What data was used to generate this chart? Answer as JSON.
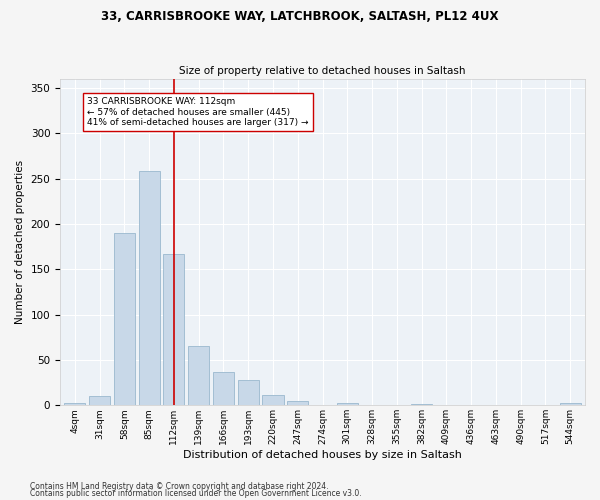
{
  "title1": "33, CARRISBROOKE WAY, LATCHBROOK, SALTASH, PL12 4UX",
  "title2": "Size of property relative to detached houses in Saltash",
  "xlabel": "Distribution of detached houses by size in Saltash",
  "ylabel": "Number of detached properties",
  "categories": [
    "4sqm",
    "31sqm",
    "58sqm",
    "85sqm",
    "112sqm",
    "139sqm",
    "166sqm",
    "193sqm",
    "220sqm",
    "247sqm",
    "274sqm",
    "301sqm",
    "328sqm",
    "355sqm",
    "382sqm",
    "409sqm",
    "436sqm",
    "463sqm",
    "490sqm",
    "517sqm",
    "544sqm"
  ],
  "values": [
    2,
    10,
    190,
    258,
    167,
    65,
    37,
    28,
    11,
    5,
    0,
    3,
    0,
    0,
    1,
    0,
    0,
    0,
    0,
    0,
    2
  ],
  "bar_color": "#c8d8e8",
  "bar_edge_color": "#9ab8ce",
  "vline_x_idx": 4,
  "vline_color": "#cc0000",
  "annotation_text": "33 CARRISBROOKE WAY: 112sqm\n← 57% of detached houses are smaller (445)\n41% of semi-detached houses are larger (317) →",
  "annotation_box_color": "#ffffff",
  "annotation_box_edge": "#cc0000",
  "ylim": [
    0,
    360
  ],
  "yticks": [
    0,
    50,
    100,
    150,
    200,
    250,
    300,
    350
  ],
  "footer1": "Contains HM Land Registry data © Crown copyright and database right 2024.",
  "footer2": "Contains public sector information licensed under the Open Government Licence v3.0.",
  "bg_color": "#edf2f7",
  "grid_color": "#ffffff",
  "bar_width": 0.85
}
